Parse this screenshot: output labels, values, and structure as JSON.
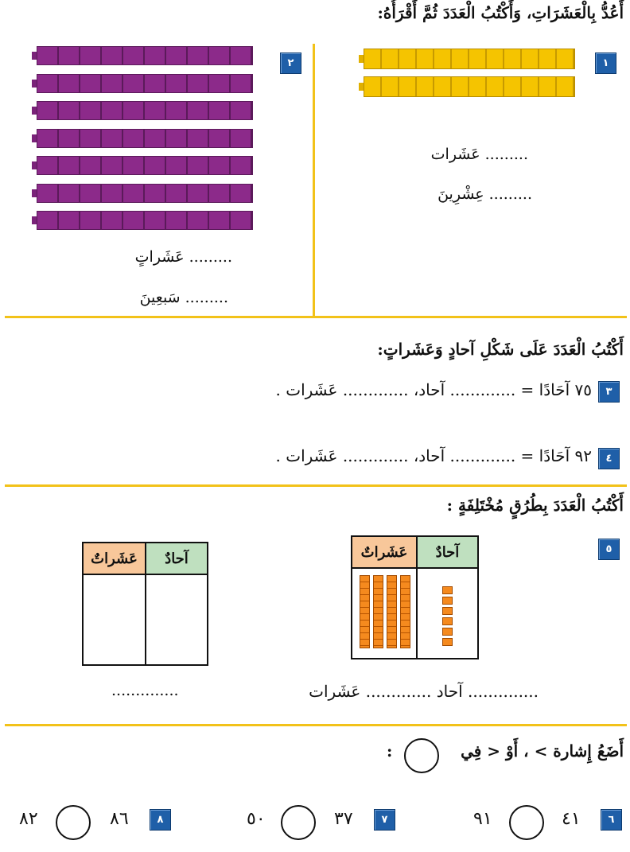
{
  "section1": {
    "heading": "أَعُدُّ بِالْعَشَرَاتِ، وَأَكْتُبُ الْعَدَدَ ثُمَّ أَقْرَأُهُ:",
    "q1": {
      "badge": "١",
      "line1": "......... عَشَرات",
      "line2": "......... عِشْرِينَ",
      "rods": 2
    },
    "q2": {
      "badge": "٢",
      "line1": "......... عَشَراتٍ",
      "line2": "......... سَبعِينَ",
      "rods": 7
    }
  },
  "section2": {
    "heading": "أَكْتُبُ الْعَدَدَ عَلَى شَكْلِ آحادٍ وَعَشَراتٍ:",
    "q3": {
      "badge": "٣",
      "number": "٧٥",
      "text": "آحَادًا = ............. آحاد، ............. عَشَرات ."
    },
    "q4": {
      "badge": "٤",
      "number": "٩٢",
      "text": "آحَادًا = ............. آحاد، ............. عَشَرات ."
    }
  },
  "section3": {
    "heading": "أَكْتُبُ الْعَدَدَ بِطُرُقٍ مُخْتَلِفَةٍ :",
    "q5": {
      "badge": "٥",
      "col_ones": "آحادٌ",
      "col_tens": "عَشَراتٌ",
      "tens_shown": 4,
      "ones_shown": 6,
      "caption": ".............. آحاد ............. عَشَرات",
      "second_caption": ".............."
    },
    "colors": {
      "ones_header": "#bfe0bf",
      "tens_header": "#f8c79a",
      "blocks": "#f07c10"
    }
  },
  "section4": {
    "heading": "أَضَعُ إِشارة > ، أَوْ < فِي",
    "heading_end": ":",
    "items": [
      {
        "badge": "٦",
        "left": "٤١",
        "right": "٩١"
      },
      {
        "badge": "٧",
        "left": "٣٧",
        "right": "٥٠"
      },
      {
        "badge": "٨",
        "left": "٨٦",
        "right": "٨٢"
      }
    ]
  },
  "colors": {
    "divider": "#f2c219",
    "badge": "#1f5fa8",
    "yellow_rod": "#f5c400",
    "purple_rod": "#8c2a8a"
  }
}
